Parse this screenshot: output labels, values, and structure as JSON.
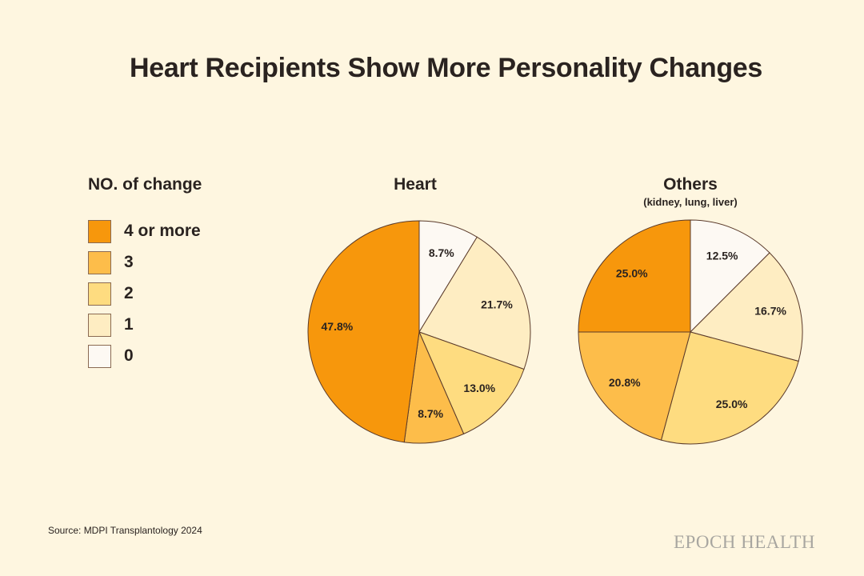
{
  "chart_data": [
    {
      "type": "pie",
      "title": "Heart",
      "subtitle": "",
      "categories": [
        "0",
        "1",
        "2",
        "3",
        "4 or more"
      ],
      "values": [
        8.7,
        21.7,
        13.0,
        8.7,
        47.8
      ],
      "labels": [
        "8.7%",
        "21.7%",
        "13.0%",
        "8.7%",
        "47.8%"
      ]
    },
    {
      "type": "pie",
      "title": "Others",
      "subtitle": "(kidney, lung, liver)",
      "categories": [
        "0",
        "1",
        "2",
        "3",
        "4 or more"
      ],
      "values": [
        12.5,
        16.7,
        25.0,
        20.8,
        25.0
      ],
      "labels": [
        "12.5%",
        "16.7%",
        "25.0%",
        "20.8%",
        "25.0%"
      ]
    }
  ],
  "title": "Heart Recipients Show More Personality Changes",
  "legend": {
    "title": "NO. of change",
    "items": [
      {
        "label": "4 or more",
        "color": "#F7970C"
      },
      {
        "label": "3",
        "color": "#FDBD4A"
      },
      {
        "label": "2",
        "color": "#FEDC80"
      },
      {
        "label": "1",
        "color": "#FEEDC2"
      },
      {
        "label": "0",
        "color": "#FDF9F3"
      }
    ]
  },
  "colors_by_category": {
    "0": "#FDF9F3",
    "1": "#FEEDC2",
    "2": "#FEDC80",
    "3": "#FDBD4A",
    "4 or more": "#F7970C"
  },
  "source": "Source: MDPI Transplantology 2024",
  "brand": "EPOCH HEALTH"
}
